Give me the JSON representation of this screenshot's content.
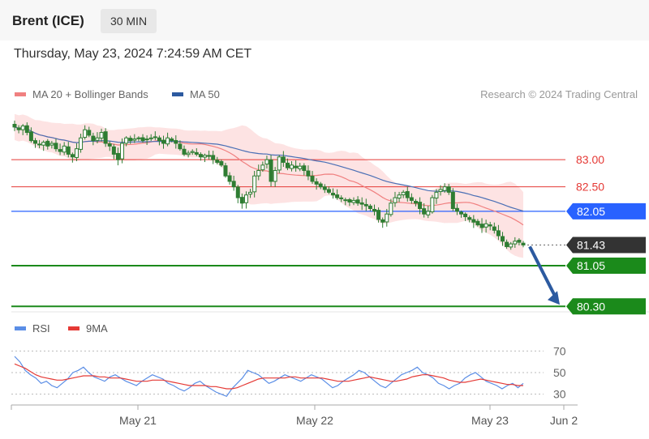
{
  "header": {
    "title": "Brent (ICE)",
    "timeframe": "30 MIN",
    "datetime": "Thursday, May 23, 2024 7:24:59 AM CET"
  },
  "legend": {
    "ma20_label": "MA 20 + Bollinger Bands",
    "ma50_label": "MA 50",
    "credit": "Research © 2024 Trading Central"
  },
  "rsi_legend": {
    "rsi_label": "RSI",
    "ma_label": "9MA"
  },
  "colors": {
    "candle": "#2e7d32",
    "ma20": "#f08080",
    "ma50": "#4a6fb5",
    "band_fill": "#fde0e0",
    "resistance": "#e53935",
    "pivot": "#2962ff",
    "support": "#1b8a1b",
    "current": "#333333",
    "rsi": "#5b8ee6",
    "rsi_ma": "#e53935",
    "arrow": "#2c5aa0"
  },
  "chart_data": [
    {
      "type": "candlestick",
      "title": "Brent (ICE)",
      "timeframe": "30 MIN",
      "x_labels": [
        "May 21",
        "May 22",
        "May 23",
        "Jun 2"
      ],
      "ylim": [
        80.2,
        84.0
      ],
      "grid": false,
      "legend_position": "top-left",
      "levels": [
        {
          "value": 83.0,
          "label": "83.00",
          "kind": "resistance"
        },
        {
          "value": 82.5,
          "label": "82.50",
          "kind": "resistance"
        },
        {
          "value": 82.05,
          "label": "82.05",
          "kind": "pivot"
        },
        {
          "value": 81.43,
          "label": "81.43",
          "kind": "current"
        },
        {
          "value": 81.05,
          "label": "81.05",
          "kind": "support"
        },
        {
          "value": 80.3,
          "label": "80.30",
          "kind": "support"
        }
      ],
      "close": [
        83.6,
        83.55,
        83.62,
        83.5,
        83.35,
        83.3,
        83.28,
        83.32,
        83.25,
        83.3,
        83.2,
        83.15,
        83.25,
        83.1,
        83.05,
        83.2,
        83.4,
        83.55,
        83.45,
        83.35,
        83.4,
        83.5,
        83.3,
        83.25,
        83.1,
        83.0,
        83.3,
        83.4,
        83.35,
        83.38,
        83.4,
        83.35,
        83.38,
        83.4,
        83.42,
        83.35,
        83.3,
        83.4,
        83.35,
        83.3,
        83.2,
        83.1,
        83.12,
        83.15,
        83.1,
        83.05,
        83.08,
        83.06,
        83.0,
        82.95,
        82.9,
        82.7,
        82.6,
        82.5,
        82.3,
        82.2,
        82.35,
        82.4,
        82.7,
        82.8,
        82.9,
        83.0,
        82.6,
        82.8,
        83.05,
        82.95,
        82.85,
        82.9,
        82.85,
        82.88,
        82.8,
        82.7,
        82.6,
        82.55,
        82.5,
        82.45,
        82.4,
        82.35,
        82.3,
        82.28,
        82.25,
        82.22,
        82.25,
        82.2,
        82.18,
        82.15,
        82.1,
        82.05,
        81.9,
        81.85,
        82.0,
        82.2,
        82.3,
        82.35,
        82.4,
        82.3,
        82.25,
        82.2,
        82.1,
        82.0,
        82.05,
        82.3,
        82.4,
        82.45,
        82.5,
        82.4,
        82.1,
        82.05,
        82.0,
        81.95,
        81.9,
        81.85,
        81.8,
        81.75,
        81.82,
        81.78,
        81.7,
        81.6,
        81.5,
        81.4,
        81.45,
        81.5,
        81.48,
        81.43
      ],
      "series": [
        {
          "name": "MA 20 + Bollinger Bands"
        },
        {
          "name": "MA 50"
        }
      ]
    },
    {
      "type": "line",
      "yticks": [
        30,
        50,
        70
      ],
      "ylim": [
        20,
        80
      ],
      "series": [
        {
          "name": "RSI",
          "values": [
            65,
            60,
            52,
            48,
            45,
            40,
            42,
            38,
            36,
            40,
            44,
            50,
            52,
            55,
            50,
            46,
            44,
            42,
            46,
            48,
            45,
            42,
            40,
            38,
            42,
            45,
            48,
            46,
            44,
            40,
            38,
            35,
            33,
            36,
            40,
            42,
            38,
            35,
            32,
            30,
            28,
            35,
            40,
            45,
            52,
            50,
            48,
            44,
            40,
            42,
            45,
            48,
            46,
            44,
            42,
            45,
            48,
            46,
            44,
            40,
            36,
            38,
            42,
            45,
            48,
            52,
            50,
            46,
            42,
            38,
            36,
            40,
            44,
            48,
            50,
            52,
            55,
            50,
            48,
            45,
            40,
            38,
            35,
            38,
            40,
            45,
            48,
            50,
            46,
            42,
            40,
            38,
            35,
            38,
            40,
            36,
            40
          ]
        },
        {
          "name": "9MA",
          "values": [
            58,
            56,
            54,
            51,
            48,
            46,
            45,
            44,
            43,
            43,
            44,
            45,
            46,
            47,
            47,
            47,
            46,
            46,
            45,
            45,
            45,
            44,
            43,
            42,
            42,
            42,
            43,
            43,
            43,
            42,
            41,
            40,
            39,
            38,
            38,
            38,
            38,
            37,
            37,
            36,
            35,
            35,
            36,
            38,
            40,
            42,
            44,
            45,
            45,
            45,
            45,
            45,
            46,
            46,
            45,
            45,
            45,
            45,
            45,
            44,
            43,
            42,
            42,
            42,
            43,
            44,
            45,
            46,
            45,
            44,
            43,
            42,
            42,
            43,
            44,
            46,
            47,
            48,
            48,
            47,
            46,
            45,
            43,
            42,
            41,
            41,
            42,
            43,
            44,
            43,
            42,
            41,
            40,
            39,
            39,
            38,
            38
          ]
        }
      ]
    }
  ]
}
